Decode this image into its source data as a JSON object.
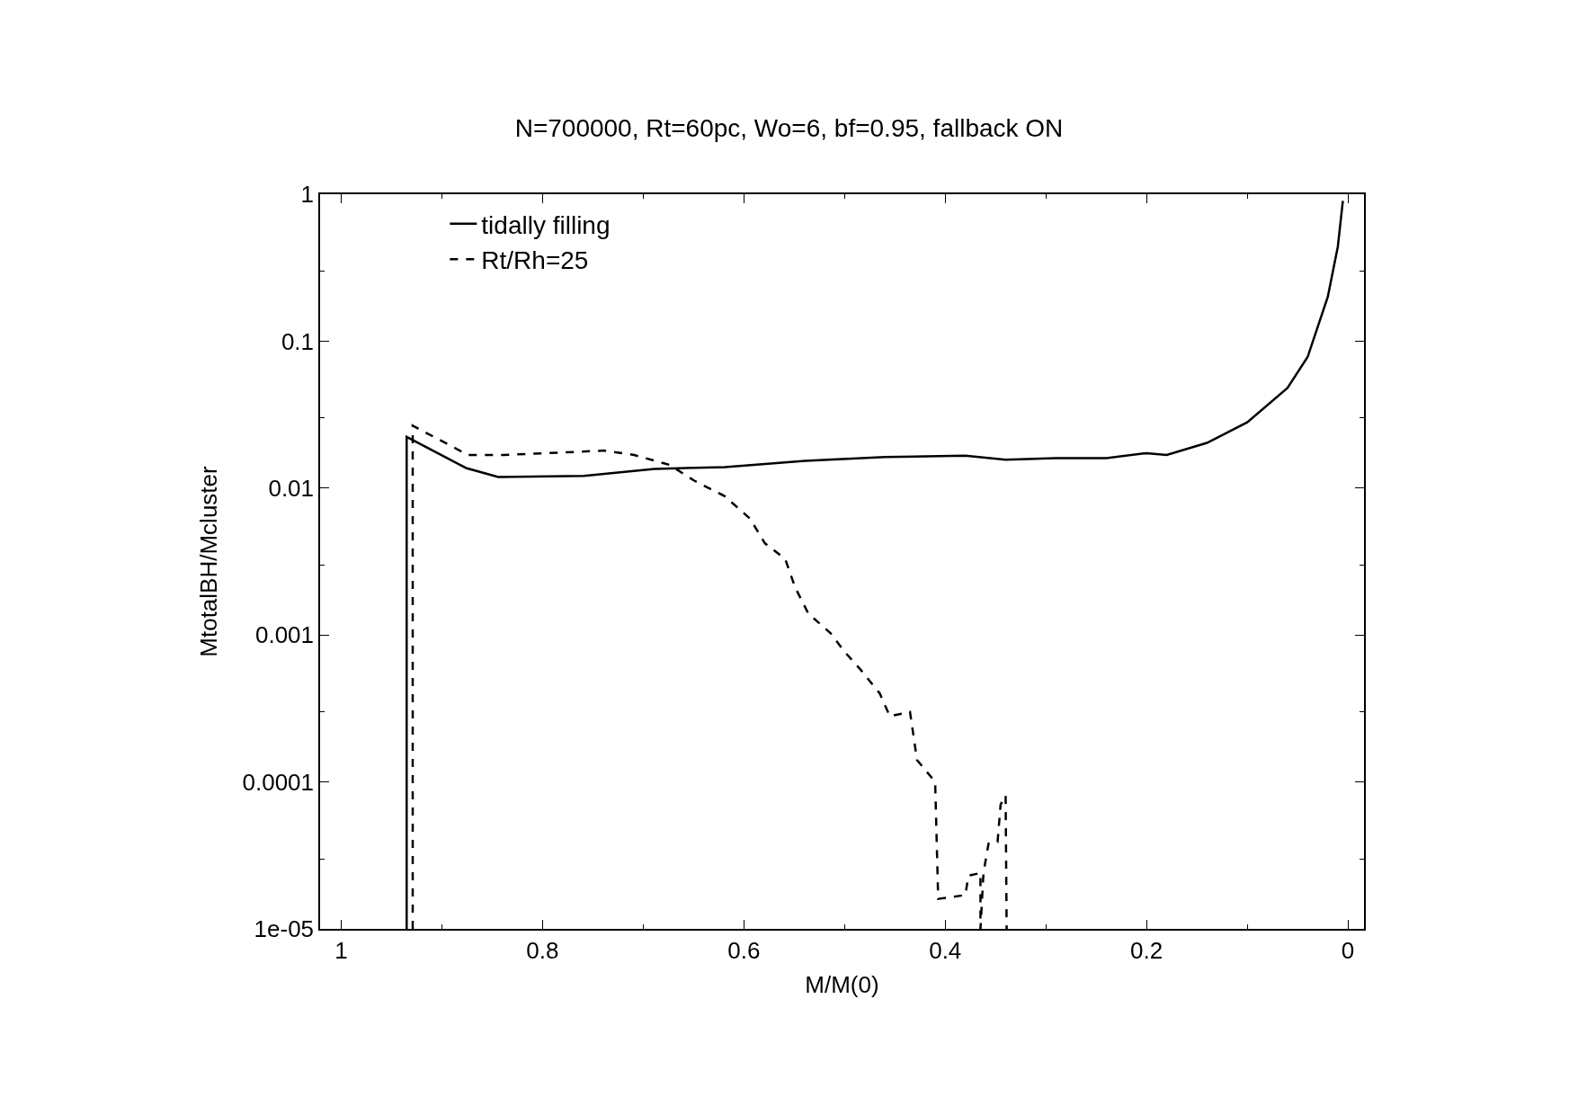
{
  "chart_data": {
    "type": "line",
    "title": "N=700000, Rt=60pc, Wo=6, bf=0.95, fallback ON",
    "xlabel": "M/M(0)",
    "ylabel": "MtotalBH/Mcluster",
    "log": "y",
    "legend": "top left",
    "xlim": [
      1.021,
      -0.016
    ],
    "xticks": [
      1,
      0.8,
      0.6,
      0.4,
      0.2,
      0
    ],
    "ylim": [
      1e-05,
      1
    ],
    "yticks": [
      1,
      0.1,
      0.01,
      0.001,
      0.0001,
      1e-05
    ],
    "series": [
      {
        "name": "tidally filling",
        "color": "#000000",
        "line_style": "solid",
        "x": [
          0.935,
          0.935,
          0.876,
          0.844,
          0.759,
          0.689,
          0.619,
          0.539,
          0.46,
          0.38,
          0.34,
          0.29,
          0.24,
          0.2,
          0.18,
          0.14,
          0.1,
          0.06,
          0.04,
          0.02,
          0.01,
          0.005
        ],
        "values": [
          1e-05,
          0.0223,
          0.0137,
          0.0119,
          0.0121,
          0.0135,
          0.0139,
          0.0153,
          0.0163,
          0.0166,
          0.0156,
          0.016,
          0.016,
          0.0173,
          0.0168,
          0.0203,
          0.028,
          0.048,
          0.078,
          0.2,
          0.44,
          0.9
        ]
      },
      {
        "name": "Rt/Rh=25",
        "color": "#000000",
        "line_style": "dashed",
        "x": [
          0.929,
          0.929,
          0.874,
          0.839,
          0.769,
          0.739,
          0.709,
          0.674,
          0.649,
          0.619,
          0.594,
          0.579,
          0.559,
          0.549,
          0.536,
          0.514,
          0.5,
          0.484,
          0.465,
          0.455,
          0.435,
          0.428,
          0.41,
          0.407,
          0.38,
          0.377,
          0.365,
          0.365,
          0.362,
          0.357,
          0.348,
          0.345,
          0.34,
          0.339
        ],
        "values": [
          1e-05,
          0.0266,
          0.0168,
          0.0168,
          0.0176,
          0.018,
          0.0168,
          0.0144,
          0.0112,
          0.0088,
          0.0062,
          0.0042,
          0.0033,
          0.0021,
          0.0014,
          0.00103,
          0.00077,
          0.00058,
          0.0004,
          0.00028,
          0.0003,
          0.000141,
          0.0001,
          1.6e-05,
          1.7e-05,
          2.3e-05,
          2.4e-05,
          1e-05,
          2.4e-05,
          3.8e-05,
          3.9e-05,
          7e-05,
          8.1e-05,
          1e-05
        ]
      }
    ]
  }
}
